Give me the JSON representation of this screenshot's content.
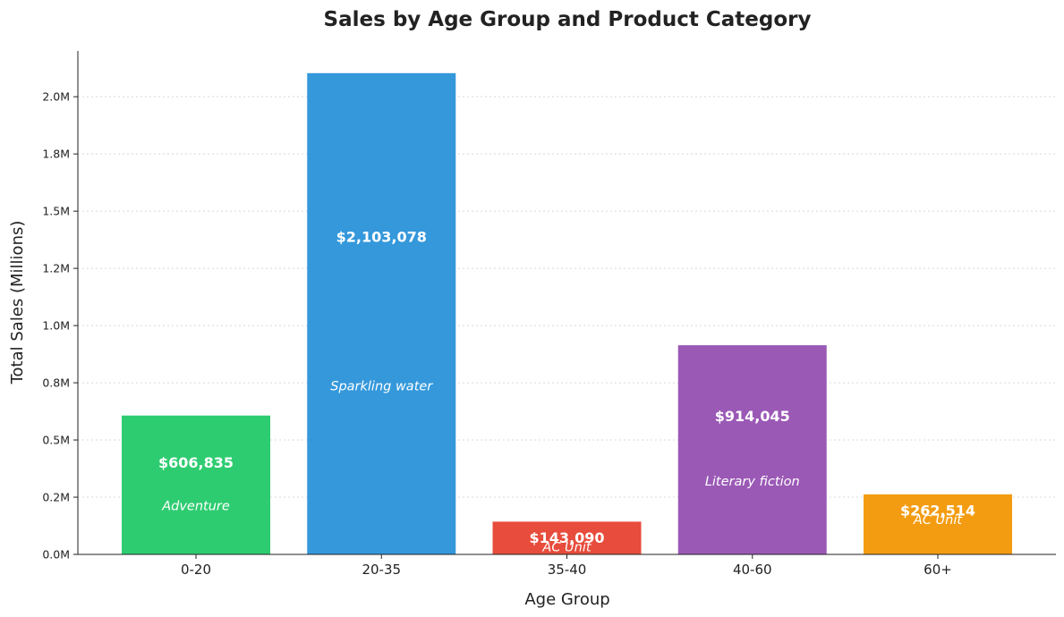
{
  "chart_data": {
    "type": "bar",
    "title": "Sales by Age Group and Product Category",
    "xlabel": "Age Group",
    "ylabel": "Total Sales (Millions)",
    "categories": [
      "0-20",
      "20-35",
      "35-40",
      "40-60",
      "60+"
    ],
    "values": [
      606835,
      2103078,
      143090,
      914045,
      262514
    ],
    "value_labels": [
      "$606,835",
      "$2,103,078",
      "$143,090",
      "$914,045",
      "$262,514"
    ],
    "product_categories": [
      "Adventure",
      "Sparkling water",
      "AC Unit",
      "Literary fiction",
      "AC Unit"
    ],
    "colors": [
      "#2ecc71",
      "#3498db",
      "#e74c3c",
      "#9b59b6",
      "#f39c12"
    ],
    "ylim": [
      0,
      2200000
    ],
    "yticks": [
      0,
      250000,
      500000,
      750000,
      1000000,
      1250000,
      1500000,
      1750000,
      2000000
    ],
    "ytick_labels": [
      "0.0M",
      "0.2M",
      "0.5M",
      "0.8M",
      "1.0M",
      "1.2M",
      "1.5M",
      "1.8M",
      "2.0M"
    ],
    "grid": "y-dotted",
    "legend": "none"
  }
}
